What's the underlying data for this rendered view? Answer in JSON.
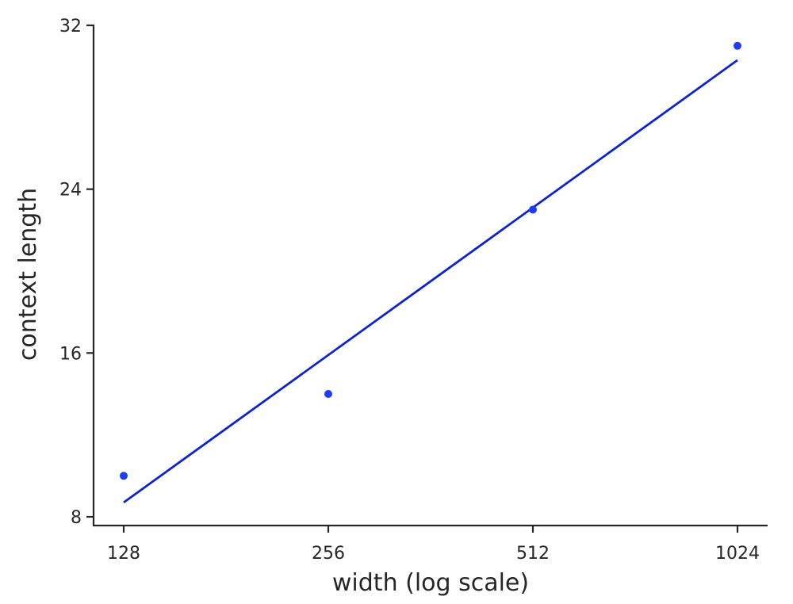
{
  "chart_data": {
    "type": "scatter",
    "xlabel": "width (log scale)",
    "ylabel": "context length",
    "x_scale": "log2",
    "xlim": [
      115,
      1150
    ],
    "ylim": [
      7.6,
      32
    ],
    "x_ticks": [
      {
        "value": 128,
        "label": "128"
      },
      {
        "value": 256,
        "label": "256"
      },
      {
        "value": 512,
        "label": "512"
      },
      {
        "value": 1024,
        "label": "1024"
      }
    ],
    "y_ticks": [
      {
        "value": 8,
        "label": "8"
      },
      {
        "value": 16,
        "label": "16"
      },
      {
        "value": 24,
        "label": "24"
      },
      {
        "value": 32,
        "label": "32"
      }
    ],
    "series": [
      {
        "kind": "scatter",
        "color": "#1f3df0",
        "points": [
          {
            "x": 128,
            "y": 10.0
          },
          {
            "x": 256,
            "y": 14.0
          },
          {
            "x": 512,
            "y": 23.0
          },
          {
            "x": 1024,
            "y": 31.0
          }
        ]
      },
      {
        "kind": "line",
        "color": "#0d24c9",
        "points": [
          {
            "x": 128,
            "y": 8.7
          },
          {
            "x": 1024,
            "y": 30.3
          }
        ]
      }
    ],
    "grid": false,
    "spines": [
      "left",
      "bottom"
    ]
  }
}
